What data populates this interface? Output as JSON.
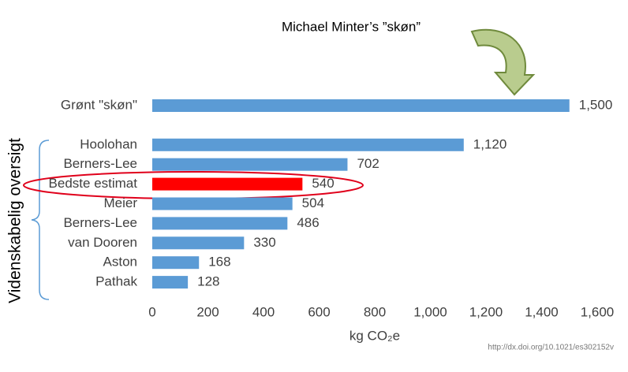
{
  "chart_data": {
    "type": "barh",
    "annotation": "Michael Minter’s ”skøn”",
    "bracket_label": "Videnskabelig oversigt",
    "source": "http://dx.doi.org/10.1021/es302152v",
    "x_label": "kg CO₂e",
    "categories": [
      "Grønt \"skøn\"",
      null,
      "Hoolohan",
      "Berners-Lee",
      "Bedste estimat",
      "Meier",
      "Berners-Lee",
      "van Dooren",
      "Aston",
      "Pathak"
    ],
    "values": [
      1500,
      null,
      1120,
      702,
      540,
      504,
      486,
      330,
      168,
      128
    ],
    "value_labels": [
      "1,500",
      null,
      "1,120",
      "702",
      "540",
      "504",
      "486",
      "330",
      "168",
      "128"
    ],
    "colors": [
      "#5b9bd5",
      null,
      "#5b9bd5",
      "#5b9bd5",
      "#ff0000",
      "#5b9bd5",
      "#5b9bd5",
      "#5b9bd5",
      "#5b9bd5",
      "#5b9bd5"
    ],
    "xlim": [
      0,
      1600
    ],
    "xticks": [
      0,
      200,
      400,
      600,
      800,
      {
        "value": 1000,
        "label": "1,000"
      },
      {
        "value": 1200,
        "label": "1,200"
      },
      {
        "value": 1400,
        "label": "1,400"
      },
      {
        "value": 1600,
        "label": "1,600"
      }
    ]
  }
}
